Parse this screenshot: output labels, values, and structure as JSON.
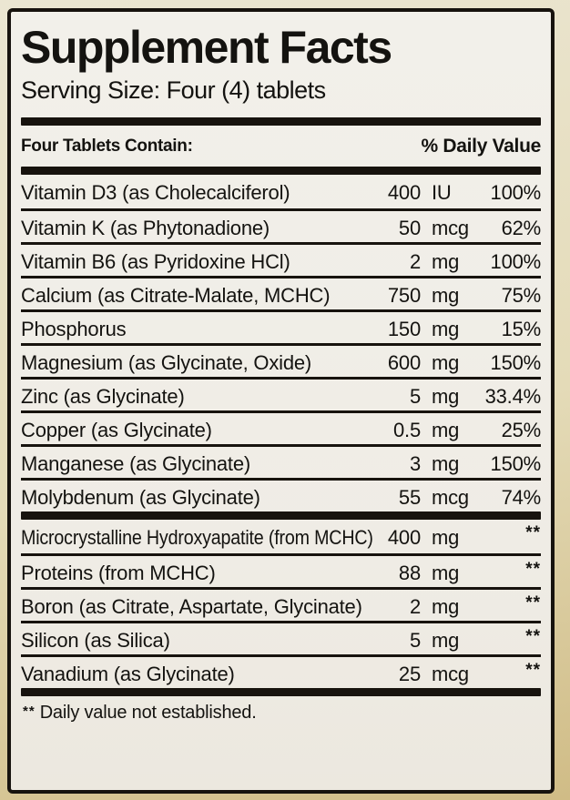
{
  "header": {
    "title": "Supplement Facts",
    "serving_size": "Serving Size: Four (4) tablets"
  },
  "table": {
    "contain_label": "Four Tablets Contain:",
    "daily_value_label": "% Daily Value",
    "section1": [
      {
        "name": "Vitamin D3 (as Cholecalciferol)",
        "amount": "400",
        "unit": "IU",
        "dv": "100%"
      },
      {
        "name": "Vitamin K (as Phytonadione)",
        "amount": "50",
        "unit": "mcg",
        "dv": "62%"
      },
      {
        "name": "Vitamin B6 (as Pyridoxine HCl)",
        "amount": "2",
        "unit": "mg",
        "dv": "100%"
      },
      {
        "name": "Calcium (as Citrate-Malate, MCHC)",
        "amount": "750",
        "unit": "mg",
        "dv": "75%"
      },
      {
        "name": "Phosphorus",
        "amount": "150",
        "unit": "mg",
        "dv": "15%"
      },
      {
        "name": "Magnesium (as Glycinate, Oxide)",
        "amount": "600",
        "unit": "mg",
        "dv": "150%"
      },
      {
        "name": "Zinc (as Glycinate)",
        "amount": "5",
        "unit": "mg",
        "dv": "33.4%"
      },
      {
        "name": "Copper (as Glycinate)",
        "amount": "0.5",
        "unit": "mg",
        "dv": "25%"
      },
      {
        "name": "Manganese (as Glycinate)",
        "amount": "3",
        "unit": "mg",
        "dv": "150%"
      },
      {
        "name": "Molybdenum (as Glycinate)",
        "amount": "55",
        "unit": "mcg",
        "dv": "74%"
      }
    ],
    "section2": [
      {
        "name": "Microcrystalline Hydroxyapatite (from MCHC)",
        "amount": "400",
        "unit": "mg",
        "dv": "**"
      },
      {
        "name": "Proteins (from MCHC)",
        "amount": "88",
        "unit": "mg",
        "dv": "**"
      },
      {
        "name": "Boron (as Citrate, Aspartate, Glycinate)",
        "amount": "2",
        "unit": "mg",
        "dv": "**"
      },
      {
        "name": "Silicon (as Silica)",
        "amount": "5",
        "unit": "mg",
        "dv": "**"
      },
      {
        "name": "Vanadium (as Glycinate)",
        "amount": "25",
        "unit": "mcg",
        "dv": "**"
      }
    ]
  },
  "footnote": {
    "marker": "**",
    "text": "Daily value not established."
  },
  "colors": {
    "label_bg": "#f1efe9",
    "frame": "#17130e",
    "ink": "#141310",
    "outer_top": "#ebe6d2",
    "outer_mid": "#e4dbb8",
    "outer_bottom": "#d0bc86"
  }
}
